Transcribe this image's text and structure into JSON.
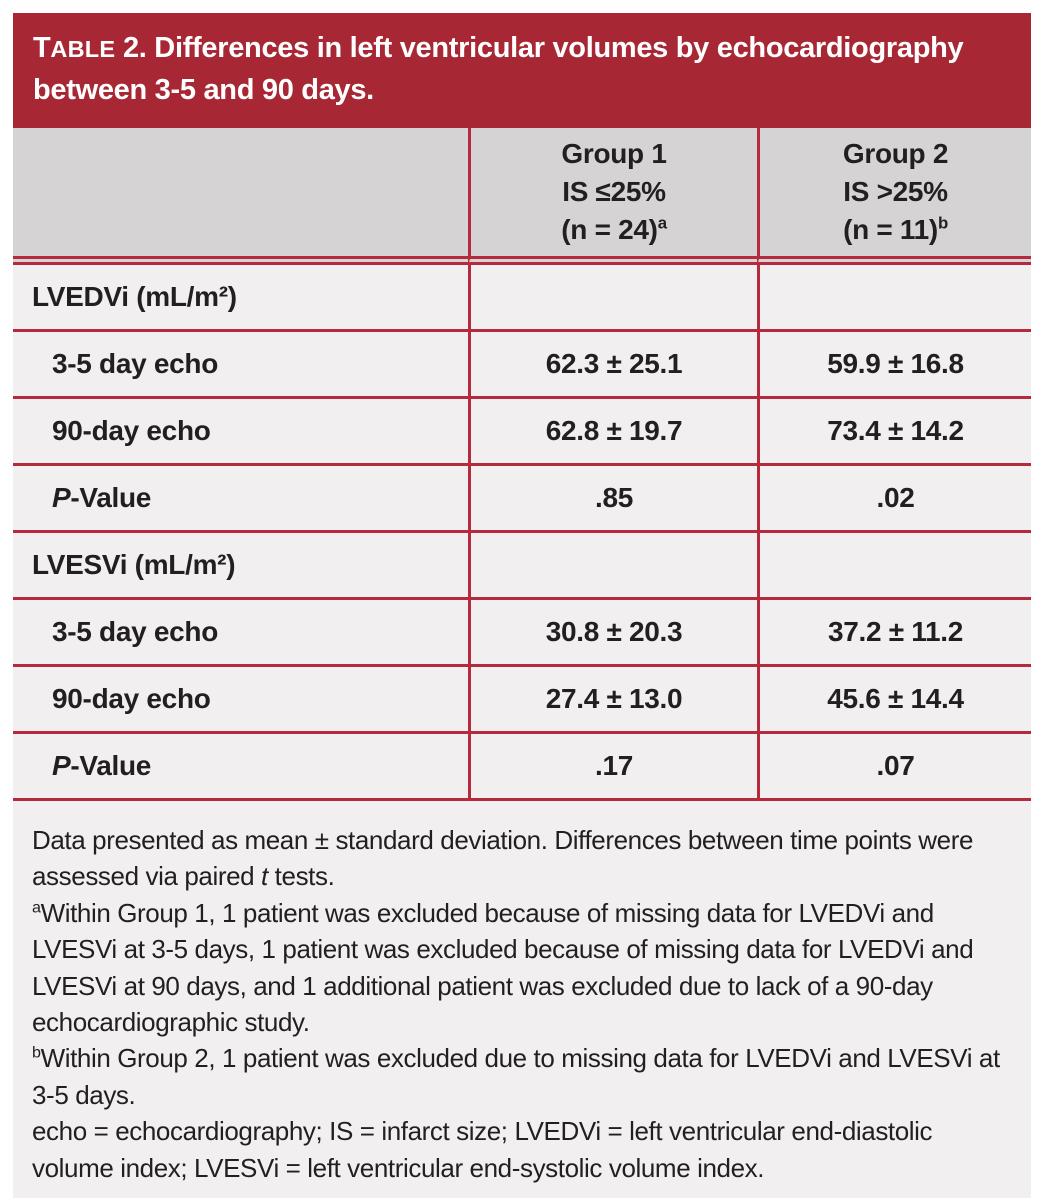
{
  "colors": {
    "title_bar_red": "#a82734",
    "grid_line_red": "#b32b3c",
    "header_gray": "#d6d3d5",
    "figure_background": "#f1efef",
    "text_black": "#231f20",
    "title_text_white": "#ffffff"
  },
  "title": {
    "prefix": "Table",
    "number": "2.",
    "line1": "Differences in left ventricular volumes by echocardiography",
    "line2": "between 3-5 and 90 days."
  },
  "table": {
    "columns": [
      {
        "id": "group1",
        "lines": [
          "Group 1",
          "IS ≤25%",
          "(n = 24)"
        ],
        "mark": "a"
      },
      {
        "id": "group2",
        "lines": [
          "Group 2",
          "IS >25%",
          "(n = 11)"
        ],
        "mark": "b"
      }
    ],
    "rows": [
      {
        "type": "section",
        "label": "LVEDVi (mL/m²)",
        "values": [
          "",
          ""
        ]
      },
      {
        "type": "data",
        "label": "3-5 day echo",
        "values": [
          "62.3 ± 25.1",
          "59.9 ± 16.8"
        ]
      },
      {
        "type": "data",
        "label": "90-day echo",
        "values": [
          "62.8 ± 19.7",
          "73.4 ± 14.2"
        ]
      },
      {
        "type": "data",
        "label": "P-Value",
        "italic_first": true,
        "values": [
          ".85",
          ".02"
        ]
      },
      {
        "type": "section",
        "label": "LVESVi (mL/m²)",
        "values": [
          "",
          ""
        ]
      },
      {
        "type": "data",
        "label": "3-5 day echo",
        "values": [
          "30.8 ± 20.3",
          "37.2 ± 11.2"
        ]
      },
      {
        "type": "data",
        "label": "90-day echo",
        "values": [
          "27.4 ± 13.0",
          "45.6 ± 14.4"
        ]
      },
      {
        "type": "data",
        "label": "P-Value",
        "italic_first": true,
        "values": [
          ".17",
          ".07"
        ]
      }
    ]
  },
  "footnotes": [
    {
      "mark": "",
      "segments": [
        {
          "text": "Data presented as mean ± standard deviation. Differences between time points were assessed via paired "
        },
        {
          "text": "t",
          "italic": true
        },
        {
          "text": " tests."
        }
      ]
    },
    {
      "mark": "a",
      "segments": [
        {
          "text": "Within Group 1, 1 patient was excluded because of missing data for LVEDVi and LVESVi at 3-5 days, 1 patient was excluded because of missing data for LVEDVi and LVESVi at 90 days, and 1 additional patient was excluded due to lack of a 90-day echocardiographic study."
        }
      ]
    },
    {
      "mark": "b",
      "segments": [
        {
          "text": "Within Group 2, 1 patient was excluded due to missing data for LVEDVi and LVESVi at 3-5 days."
        }
      ]
    },
    {
      "mark": "",
      "segments": [
        {
          "text": "echo = echocardiography; IS = infarct size; LVEDVi = left ventricular end-diastolic volume index; LVESVi = left ventricular end-systolic volume index."
        }
      ]
    }
  ]
}
